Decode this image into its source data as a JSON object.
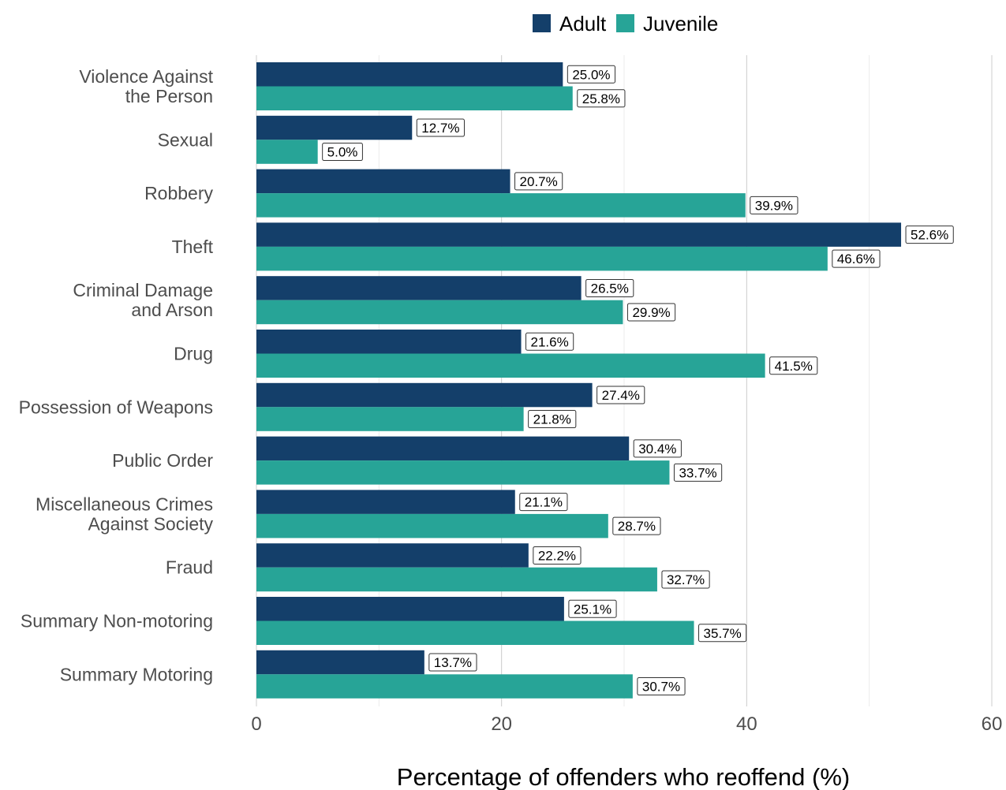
{
  "chart_data": {
    "type": "bar",
    "orientation": "horizontal",
    "categories": [
      [
        "Violence Against",
        "the Person"
      ],
      [
        "Sexual"
      ],
      [
        "Robbery"
      ],
      [
        "Theft"
      ],
      [
        "Criminal Damage",
        "and Arson"
      ],
      [
        "Drug"
      ],
      [
        "Possession of Weapons"
      ],
      [
        "Public Order"
      ],
      [
        "Miscellaneous Crimes",
        "Against Society"
      ],
      [
        "Fraud"
      ],
      [
        "Summary Non-motoring"
      ],
      [
        "Summary Motoring"
      ]
    ],
    "series": [
      {
        "name": "Adult",
        "color": "#143f6a",
        "values": [
          25.0,
          12.7,
          20.7,
          52.6,
          26.5,
          21.6,
          27.4,
          30.4,
          21.1,
          22.2,
          25.1,
          13.7
        ],
        "labels": [
          "25.0%",
          "12.7%",
          "20.7%",
          "52.6%",
          "26.5%",
          "21.6%",
          "27.4%",
          "30.4%",
          "21.1%",
          "22.2%",
          "25.1%",
          "13.7%"
        ]
      },
      {
        "name": "Juvenile",
        "color": "#27a497",
        "values": [
          25.8,
          5.0,
          39.9,
          46.6,
          29.9,
          41.5,
          21.8,
          33.7,
          28.7,
          32.7,
          35.7,
          30.7
        ],
        "labels": [
          "25.8%",
          "5.0%",
          "39.9%",
          "46.6%",
          "29.9%",
          "41.5%",
          "21.8%",
          "33.7%",
          "28.7%",
          "32.7%",
          "35.7%",
          "30.7%"
        ]
      }
    ],
    "xlabel": "Percentage of offenders who reoffend (%)",
    "xlim": [
      0,
      60
    ],
    "xticks": [
      0,
      20,
      40,
      60
    ],
    "xtick_labels": [
      "0",
      "20",
      "40",
      "60"
    ],
    "grid": true,
    "legend_position": "top"
  }
}
